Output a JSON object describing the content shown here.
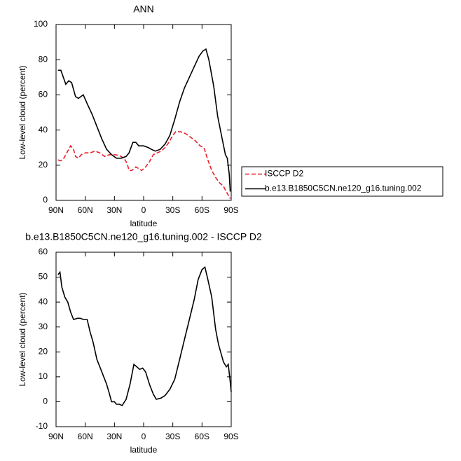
{
  "chart_data": [
    {
      "type": "line",
      "title": "ANN",
      "x_label": "latitude",
      "y_label": "Low-level cloud (percent)",
      "xlim": [
        90,
        -90
      ],
      "xticks": [
        {
          "value": 90,
          "label": "90N"
        },
        {
          "value": 60,
          "label": "60N"
        },
        {
          "value": 30,
          "label": "30N"
        },
        0,
        {
          "value": -30,
          "label": "30S"
        },
        {
          "value": -60,
          "label": "60S"
        },
        {
          "value": -90,
          "label": "90S"
        }
      ],
      "ylim": [
        0,
        100
      ],
      "yticks": [
        0,
        20,
        40,
        60,
        80,
        100
      ],
      "legend": "right",
      "series": [
        {
          "name": "ISCCP D2",
          "color": "#e8202a",
          "dash": true,
          "x": [
            88,
            85,
            82,
            78,
            75,
            72,
            70,
            67,
            64,
            60,
            55,
            50,
            45,
            40,
            35,
            30,
            25,
            20,
            17,
            15,
            12,
            8,
            5,
            2,
            -2,
            -6,
            -10,
            -14,
            -18,
            -22,
            -26,
            -30,
            -33,
            -38,
            -43,
            -48,
            -53,
            -58,
            -62,
            -66,
            -70,
            -74,
            -78,
            -82,
            -86,
            -89
          ],
          "values": [
            23,
            22.5,
            24,
            28,
            31,
            29,
            25,
            24,
            26,
            27,
            27,
            28,
            27,
            25,
            26,
            26,
            25.5,
            24,
            21,
            17,
            17,
            19,
            18,
            17,
            19,
            22,
            26,
            27,
            28,
            30,
            33,
            37,
            39,
            39,
            38,
            36,
            34,
            31,
            30,
            23,
            17,
            13,
            10,
            8,
            4,
            1
          ]
        },
        {
          "name": "b.e13.B1850C5CN.ne120_g16.tuning.002",
          "color": "#000000",
          "dash": false,
          "x": [
            88,
            85,
            80,
            77,
            74,
            70,
            67,
            62,
            58,
            53,
            48,
            43,
            38,
            33,
            28,
            23,
            18,
            15,
            11,
            8,
            5,
            0,
            -5,
            -8,
            -12,
            -17,
            -22,
            -27,
            -32,
            -37,
            -42,
            -47,
            -52,
            -57,
            -61,
            -64,
            -67,
            -72,
            -76,
            -80,
            -84,
            -86,
            -88,
            -89
          ],
          "values": [
            74,
            74,
            66,
            68,
            67,
            59,
            58,
            60,
            55,
            49,
            42,
            35,
            29,
            26,
            24,
            24,
            25,
            27,
            33,
            33,
            31,
            31,
            30,
            29,
            28,
            29,
            32,
            37,
            46,
            56,
            64,
            70,
            76,
            82,
            85,
            86,
            80,
            65,
            48,
            37,
            26,
            24,
            15,
            5
          ]
        }
      ]
    },
    {
      "type": "line",
      "title": "b.e13.B1850C5CN.ne120_g16.tuning.002 - ISCCP D2",
      "x_label": "latitude",
      "y_label": "Low-level cloud (percent)",
      "xlim": [
        90,
        -90
      ],
      "xticks": [
        {
          "value": 90,
          "label": "90N"
        },
        {
          "value": 60,
          "label": "60N"
        },
        {
          "value": 30,
          "label": "30N"
        },
        0,
        {
          "value": -30,
          "label": "30S"
        },
        {
          "value": -60,
          "label": "60S"
        },
        {
          "value": -90,
          "label": "90S"
        }
      ],
      "ylim": [
        -10,
        60
      ],
      "yticks": [
        -10,
        0,
        10,
        20,
        30,
        40,
        50,
        60
      ],
      "series": [
        {
          "color": "#000000",
          "dash": false,
          "x": [
            88,
            86,
            84,
            81,
            78,
            75,
            72,
            68,
            65,
            62,
            58,
            55,
            52,
            48,
            43,
            38,
            35,
            33,
            30,
            28,
            25,
            22,
            18,
            14,
            10,
            7,
            4,
            1,
            -2,
            -6,
            -10,
            -13,
            -18,
            -22,
            -27,
            -32,
            -37,
            -42,
            -47,
            -52,
            -56,
            -60,
            -63,
            -66,
            -70,
            -74,
            -77,
            -82,
            -85,
            -87,
            -89,
            -90
          ],
          "values": [
            51,
            52,
            46,
            42,
            40,
            36,
            33,
            33.5,
            33.5,
            33,
            33,
            28,
            24,
            17,
            12,
            7,
            3,
            0,
            0,
            -1,
            -1,
            -1.5,
            1,
            7,
            15,
            14,
            13,
            13.5,
            12,
            7,
            3,
            1,
            1.5,
            2.5,
            5,
            9,
            17,
            25,
            33,
            41,
            49,
            53,
            54,
            49,
            42,
            29,
            23,
            16,
            14,
            15,
            8,
            4
          ]
        }
      ]
    }
  ]
}
